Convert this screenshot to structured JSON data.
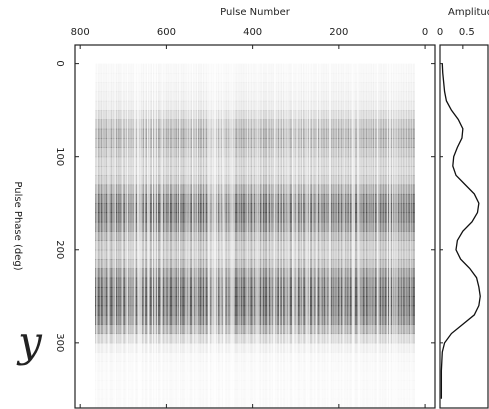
{
  "chart_data": [
    {
      "type": "heatmap",
      "x_label": "Pulse Number",
      "y_label": "Pulse Phase (deg)",
      "xlim": [
        812,
        -23
      ],
      "xticks": [
        800,
        600,
        400,
        200,
        0
      ],
      "ylim": [
        -20,
        370
      ],
      "yticks": [
        0,
        100,
        200,
        300
      ],
      "color": "#111111",
      "annotation": "y"
    },
    {
      "type": "line",
      "title": "Amplitud",
      "xlim": [
        0,
        1.05
      ],
      "xticks": [
        0,
        0.5
      ],
      "ylim": [
        -20,
        370
      ],
      "color": "#111111",
      "phase": [
        0,
        10,
        20,
        30,
        40,
        50,
        60,
        70,
        80,
        90,
        100,
        110,
        120,
        130,
        140,
        150,
        160,
        170,
        180,
        190,
        200,
        210,
        220,
        230,
        240,
        250,
        260,
        270,
        280,
        290,
        300,
        310,
        320,
        330,
        340,
        350,
        360
      ],
      "amplitude": [
        0.05,
        0.06,
        0.08,
        0.1,
        0.14,
        0.25,
        0.4,
        0.5,
        0.48,
        0.38,
        0.3,
        0.28,
        0.35,
        0.55,
        0.75,
        0.85,
        0.82,
        0.7,
        0.5,
        0.38,
        0.35,
        0.45,
        0.65,
        0.8,
        0.85,
        0.88,
        0.85,
        0.75,
        0.5,
        0.25,
        0.1,
        0.05,
        0.04,
        0.03,
        0.03,
        0.03,
        0.03
      ]
    }
  ]
}
